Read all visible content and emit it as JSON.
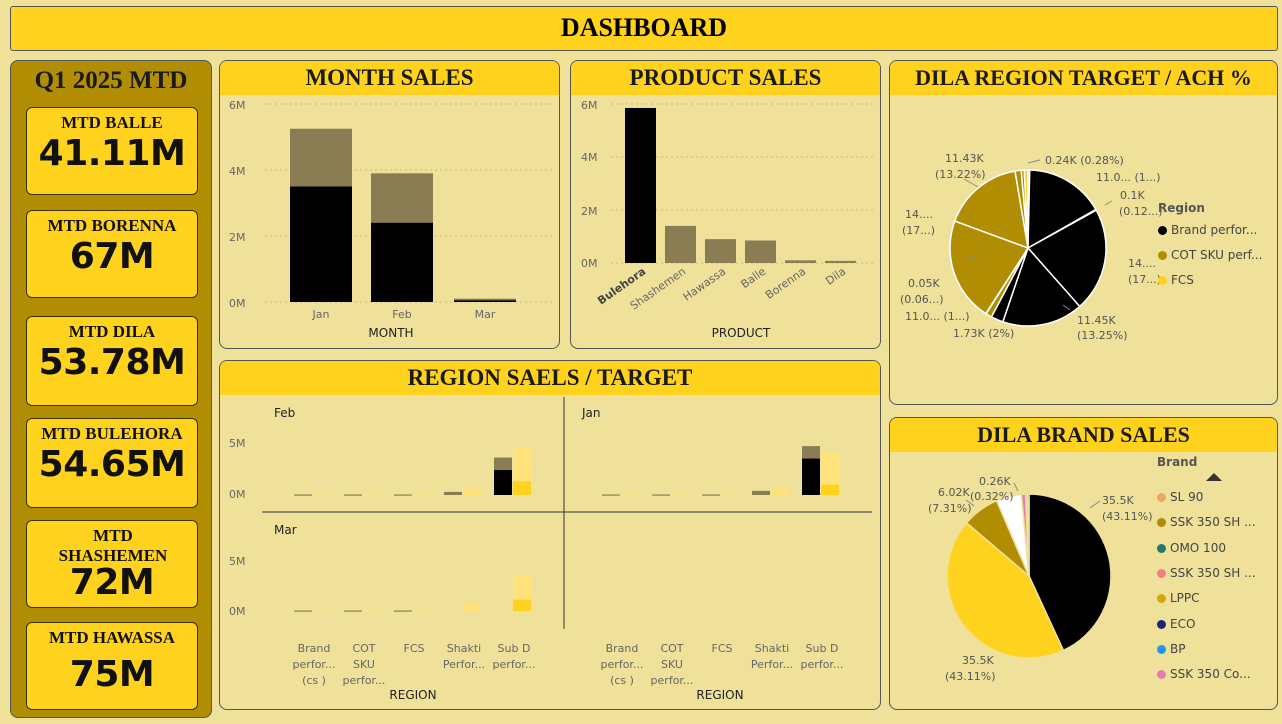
{
  "header": {
    "title": "DASHBOARD"
  },
  "kpis": {
    "heading": "Q1 2025 MTD",
    "items": [
      {
        "label": "MTD BALLE",
        "value": "41.11M"
      },
      {
        "label": "MTD BORENNA",
        "value": "67M"
      },
      {
        "label": "MTD DILA",
        "value": "53.78M"
      },
      {
        "label": "MTD BULEHORA",
        "value": "54.65M"
      },
      {
        "label": "MTD SHASHEMEN",
        "value": "72M"
      },
      {
        "label": "MTD HAWASSA",
        "value": "75M"
      }
    ]
  },
  "month_sales": {
    "title": "MONTH SALES",
    "xlabel": "MONTH",
    "yticks": [
      "6M",
      "4M",
      "2M",
      "0M"
    ]
  },
  "product_sales": {
    "title": "PRODUCT SALES",
    "xlabel": "PRODUCT",
    "yticks": [
      "6M",
      "4M",
      "2M",
      "0M"
    ]
  },
  "region_target": {
    "title": "REGION SAELS / TARGET",
    "xlabel": "REGION",
    "facets": [
      "Feb",
      "Jan",
      "Mar"
    ],
    "yticks": [
      "5M",
      "0M"
    ],
    "categories": [
      [
        "Brand",
        "perfor...",
        "(cs )"
      ],
      [
        "COT",
        "SKU",
        "perfor..."
      ],
      [
        "FCS"
      ],
      [
        "Shakti",
        "Perfor..."
      ],
      [
        "Sub D",
        "perfor..."
      ]
    ]
  },
  "dila_region": {
    "title": "DILA REGION TARGET / ACH %",
    "legend_title": "Region",
    "legend": [
      {
        "name": "Brand perfor...",
        "color": "#000000"
      },
      {
        "name": "COT SKU perf...",
        "color": "#b08d03"
      },
      {
        "name": "FCS",
        "color": "#ffd21d"
      }
    ],
    "labels": [
      "0.24K (0.28%)",
      "11.0... (1...)",
      "0.1K",
      "(0.12...)",
      "14....",
      "(17...)",
      "11.45K",
      "(13.25%)",
      "1.73K (2%)",
      "11.0... (1...)",
      "0.05K",
      "(0.06...)",
      "14....",
      "(17...)",
      "11.43K",
      "(13.22%)"
    ]
  },
  "dila_brand": {
    "title": "DILA BRAND SALES",
    "legend_title": "Brand",
    "legend": [
      {
        "name": "SL 90",
        "color": "#f4a261"
      },
      {
        "name": "SSK  350 SH  ...",
        "color": "#b08d03"
      },
      {
        "name": "OMO 100",
        "color": "#1f7a6b"
      },
      {
        "name": "SSK  350 SH ...",
        "color": "#f08080"
      },
      {
        "name": "LPPC",
        "color": "#d4a70a"
      },
      {
        "name": "ECO",
        "color": "#1a237e"
      },
      {
        "name": "BP",
        "color": "#2196f3"
      },
      {
        "name": "SSK  350  Co...",
        "color": "#e57bb3"
      }
    ],
    "labels": [
      "35.5K",
      "(43.11%)",
      "35.5K",
      "(43.11%)",
      "6.02K",
      "(7.31%)",
      "0.26K",
      "(0.32%)"
    ]
  },
  "chart_data": [
    {
      "type": "bar",
      "title": "MONTH SALES",
      "xlabel": "MONTH",
      "categories": [
        "Jan",
        "Feb",
        "Mar"
      ],
      "series": [
        {
          "values": [
            3.5,
            2.4,
            0.05
          ]
        },
        {
          "values": [
            5.25,
            3.9,
            0.1
          ]
        }
      ],
      "ylim": [
        0,
        6
      ],
      "yunit": "M"
    },
    {
      "type": "bar",
      "title": "PRODUCT SALES",
      "xlabel": "PRODUCT",
      "categories": [
        "Bulehora",
        "Shashemen",
        "Hawassa",
        "Balle",
        "Borenna",
        "Dila"
      ],
      "values": [
        5.85,
        1.4,
        0.9,
        0.85,
        0.1,
        0.08
      ],
      "ylim": [
        0,
        6
      ],
      "yunit": "M"
    },
    {
      "type": "bar",
      "title": "REGION SAELS / TARGET",
      "xlabel": "REGION",
      "facets": [
        {
          "name": "Feb",
          "sales": [
            0.05,
            0.05,
            0.05,
            0.3,
            3.6
          ],
          "sales_inner": [
            0,
            0,
            0,
            0,
            2.4
          ],
          "target": [
            0.05,
            0.05,
            0.05,
            0.6,
            4.5
          ],
          "target_inner": [
            0,
            0,
            0,
            0,
            1.3
          ]
        },
        {
          "name": "Jan",
          "sales": [
            0.05,
            0.05,
            0.05,
            0.4,
            4.7
          ],
          "sales_inner": [
            0,
            0,
            0,
            0,
            3.5
          ],
          "target": [
            0.05,
            0.05,
            0.05,
            0.6,
            4.1
          ],
          "target_inner": [
            0,
            0,
            0,
            0,
            1.0
          ]
        },
        {
          "name": "Mar",
          "sales": [
            0.05,
            0.05,
            0.05,
            0,
            0
          ],
          "sales_inner": [
            0,
            0,
            0,
            0,
            0
          ],
          "target": [
            0.05,
            0.05,
            0.05,
            0.8,
            3.4
          ],
          "target_inner": [
            0,
            0,
            0,
            0,
            1.1
          ]
        }
      ],
      "ylim": [
        0,
        6
      ],
      "yunit": "M"
    },
    {
      "type": "pie",
      "title": "DILA REGION TARGET / ACH %",
      "slices": [
        {
          "value": 0.28,
          "color": "#000000"
        },
        {
          "value": 13.0,
          "color": "#000000"
        },
        {
          "value": 0.12,
          "color": "#000000"
        },
        {
          "value": 17.0,
          "color": "#000000"
        },
        {
          "value": 13.25,
          "color": "#000000"
        },
        {
          "value": 2.0,
          "color": "#000000"
        },
        {
          "value": 1.0,
          "color": "#b08d03"
        },
        {
          "value": 0.06,
          "color": "#b08d03"
        },
        {
          "value": 17.0,
          "color": "#b08d03"
        },
        {
          "value": 13.22,
          "color": "#b08d03"
        },
        {
          "value": 1.0,
          "color": "#b08d03"
        },
        {
          "value": 0.5,
          "color": "#b08d03"
        },
        {
          "value": 0.6,
          "color": "#ffd21d"
        }
      ]
    },
    {
      "type": "pie",
      "title": "DILA BRAND SALES",
      "slices": [
        {
          "value": 43.11,
          "color": "#000000"
        },
        {
          "value": 43.11,
          "color": "#ffd21d"
        },
        {
          "value": 7.31,
          "color": "#b08d03"
        },
        {
          "value": 5.0,
          "color": "#ffffff"
        },
        {
          "value": 0.8,
          "color": "#e57bb3"
        },
        {
          "value": 0.35,
          "color": "#2196f3"
        },
        {
          "value": 0.32,
          "color": "#1a237e"
        }
      ]
    }
  ]
}
